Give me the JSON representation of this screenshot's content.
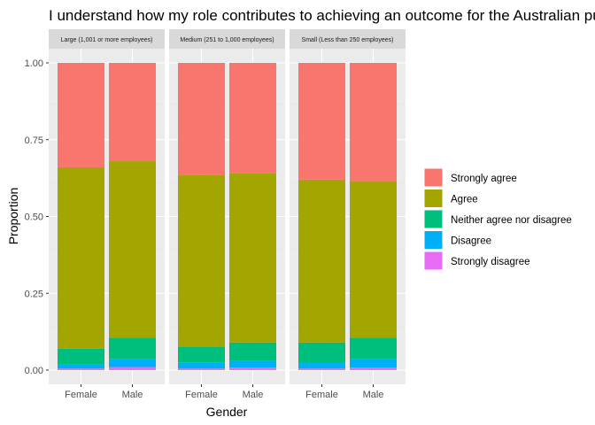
{
  "chart_data": {
    "type": "bar",
    "stacked": true,
    "title": "I understand how my role contributes to achieving an outcome for the Australian public",
    "xlabel": "Gender",
    "ylabel": "Proportion",
    "ylim": [
      0,
      1
    ],
    "y_ticks": [
      "0.00",
      "0.25",
      "0.50",
      "0.75",
      "1.00"
    ],
    "categories": [
      "Female",
      "Male"
    ],
    "panels": [
      "Large (1,001 or more employees)",
      "Medium (251 to 1,000 employees)",
      "Small (Less than 250 employees)"
    ],
    "legend_position": "right",
    "grid": true,
    "series": [
      {
        "name": "Strongly disagree",
        "color": "#E76BF3",
        "values": [
          [
            0.005,
            0.01
          ],
          [
            0.005,
            0.008
          ],
          [
            0.005,
            0.008
          ]
        ]
      },
      {
        "name": "Disagree",
        "color": "#00B0F6",
        "values": [
          [
            0.015,
            0.025
          ],
          [
            0.02,
            0.022
          ],
          [
            0.018,
            0.027
          ]
        ]
      },
      {
        "name": "Neither agree nor disagree",
        "color": "#00BF7D",
        "values": [
          [
            0.05,
            0.07
          ],
          [
            0.05,
            0.06
          ],
          [
            0.067,
            0.07
          ]
        ]
      },
      {
        "name": "Agree",
        "color": "#A3A500",
        "values": [
          [
            0.59,
            0.575
          ],
          [
            0.56,
            0.55
          ],
          [
            0.53,
            0.51
          ]
        ]
      },
      {
        "name": "Strongly agree",
        "color": "#F8766D",
        "values": [
          [
            0.34,
            0.32
          ],
          [
            0.365,
            0.36
          ],
          [
            0.38,
            0.385
          ]
        ]
      }
    ],
    "legend_order": [
      "Strongly agree",
      "Agree",
      "Neither agree nor disagree",
      "Disagree",
      "Strongly disagree"
    ]
  }
}
